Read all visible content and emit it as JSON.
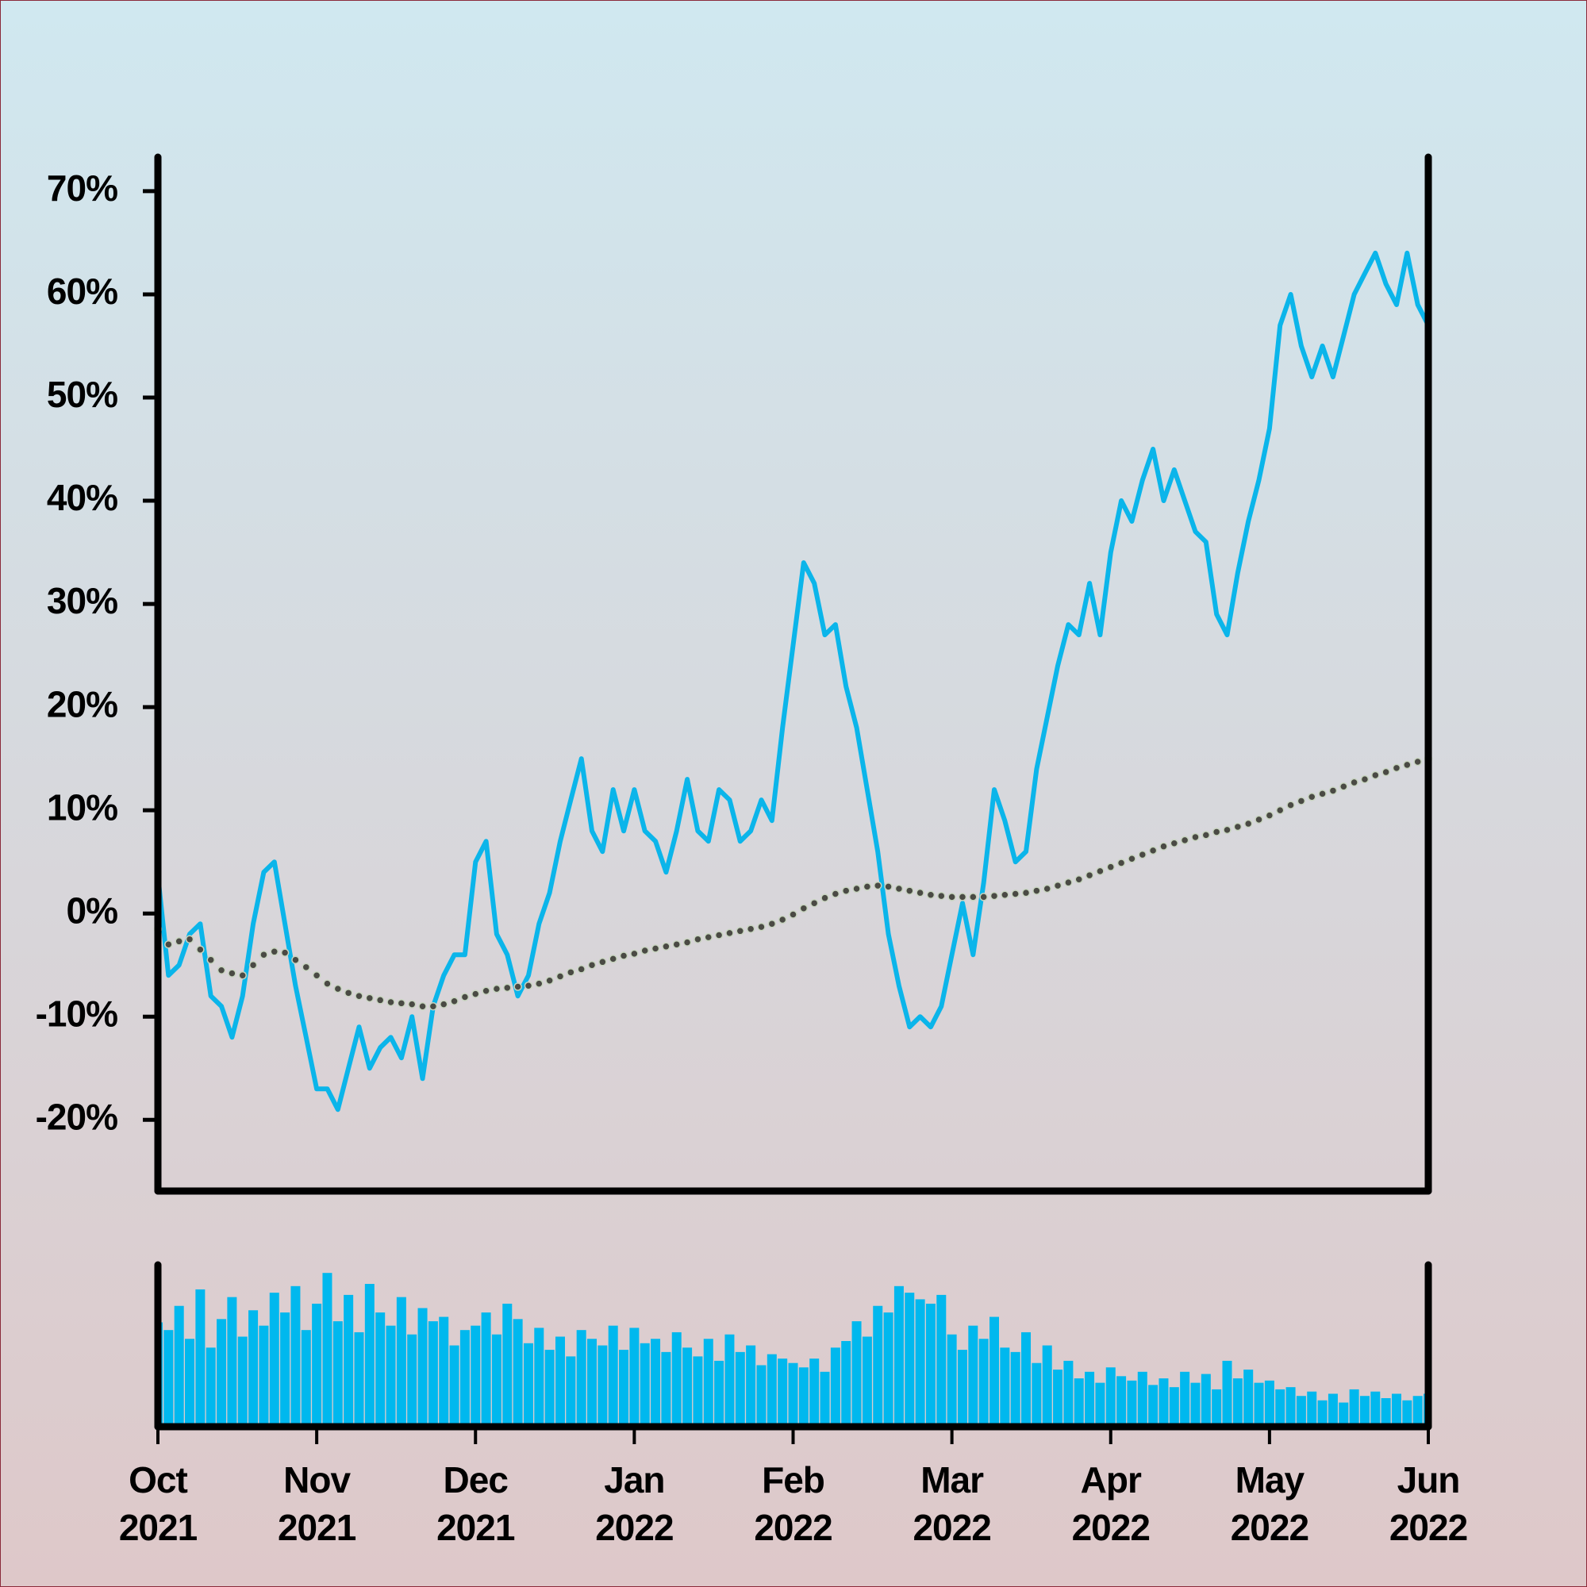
{
  "chart_data": [
    {
      "type": "line",
      "categories": [
        "Oct 2021",
        null,
        null,
        null,
        null,
        null,
        null,
        null,
        null,
        null,
        null,
        null,
        null,
        null,
        null,
        "Nov 2021",
        null,
        null,
        null,
        null,
        null,
        null,
        null,
        null,
        null,
        null,
        null,
        null,
        null,
        null,
        "Dec 2021",
        null,
        null,
        null,
        null,
        null,
        null,
        null,
        null,
        null,
        null,
        null,
        null,
        null,
        null,
        "Jan 2022",
        null,
        null,
        null,
        null,
        null,
        null,
        null,
        null,
        null,
        null,
        null,
        null,
        null,
        null,
        "Feb 2022",
        null,
        null,
        null,
        null,
        null,
        null,
        null,
        null,
        null,
        null,
        null,
        null,
        null,
        null,
        "Mar 2022",
        null,
        null,
        null,
        null,
        null,
        null,
        null,
        null,
        null,
        null,
        null,
        null,
        null,
        null,
        "Apr 2022",
        null,
        null,
        null,
        null,
        null,
        null,
        null,
        null,
        null,
        null,
        null,
        null,
        null,
        null,
        "May 2022",
        null,
        null,
        null,
        null,
        null,
        null,
        null,
        null,
        null,
        null,
        null,
        null,
        null,
        null,
        "Jun 2022"
      ],
      "series": [
        {
          "color": "#0bb5ea",
          "style": "line",
          "values": [
            3.7,
            -6,
            -5,
            -2,
            -1,
            -8,
            -9,
            -12,
            -8,
            -1,
            4,
            5,
            -1,
            -7,
            -12,
            -17,
            -17,
            -19,
            -15,
            -11,
            -15,
            -13,
            -12,
            -14,
            -10,
            -16,
            -9,
            -6,
            -4,
            -4,
            5,
            7,
            -2,
            -4,
            -8,
            -6,
            -1,
            2,
            7,
            11,
            15,
            8,
            6,
            12,
            8,
            12,
            8,
            7,
            4,
            8,
            13,
            8,
            7,
            12,
            11,
            7,
            8,
            11,
            9,
            18,
            26,
            34,
            32,
            27,
            28,
            22,
            18,
            12,
            6,
            -2,
            -7,
            -11,
            -10,
            -11,
            -9,
            -4,
            1,
            -4,
            3,
            12,
            9,
            5,
            6,
            14,
            19,
            24,
            28,
            27,
            32,
            27,
            35,
            40,
            38,
            42,
            45,
            40,
            43,
            40,
            37,
            36,
            29,
            27,
            33,
            38,
            42,
            47,
            57,
            60,
            55,
            52,
            55,
            52,
            56,
            60,
            62,
            64,
            61,
            59,
            64,
            59,
            57
          ]
        },
        {
          "color": "#4a4a44",
          "style": "dots",
          "values": [
            -1.5,
            -3,
            -2.7,
            -2.5,
            -3.5,
            -4.5,
            -5.5,
            -5.8,
            -6,
            -5,
            -4,
            -3.7,
            -3.8,
            -4.5,
            -5.2,
            -6,
            -6.8,
            -7.3,
            -7.7,
            -8,
            -8.2,
            -8.4,
            -8.6,
            -8.7,
            -8.8,
            -9,
            -9,
            -8.8,
            -8.5,
            -8.1,
            -7.8,
            -7.5,
            -7.3,
            -7.2,
            -7.1,
            -7,
            -6.8,
            -6.5,
            -6.1,
            -5.7,
            -5.4,
            -5,
            -4.7,
            -4.4,
            -4.1,
            -3.9,
            -3.6,
            -3.4,
            -3.2,
            -3,
            -2.8,
            -2.5,
            -2.3,
            -2.1,
            -1.9,
            -1.7,
            -1.5,
            -1.3,
            -1,
            -0.6,
            -0.1,
            0.5,
            1,
            1.5,
            1.9,
            2.2,
            2.4,
            2.6,
            2.7,
            2.6,
            2.4,
            2.2,
            2,
            1.8,
            1.7,
            1.6,
            1.6,
            1.6,
            1.6,
            1.7,
            1.8,
            1.9,
            2,
            2.2,
            2.4,
            2.7,
            3,
            3.3,
            3.7,
            4.1,
            4.5,
            4.9,
            5.3,
            5.7,
            6.1,
            6.5,
            6.8,
            7.1,
            7.4,
            7.6,
            7.9,
            8.1,
            8.4,
            8.7,
            9.1,
            9.5,
            10,
            10.5,
            10.9,
            11.3,
            11.6,
            11.9,
            12.3,
            12.7,
            13,
            13.4,
            13.7,
            14.1,
            14.4,
            14.7,
            15
          ]
        }
      ],
      "ylim": [
        -26.9,
        73.3
      ],
      "yticks": [
        {
          "value": -20,
          "label": "-20%"
        },
        {
          "value": -10,
          "label": "-10%"
        },
        {
          "value": 0,
          "label": "0%"
        },
        {
          "value": 10,
          "label": "10%"
        },
        {
          "value": 20,
          "label": "20%"
        },
        {
          "value": 30,
          "label": "30%"
        },
        {
          "value": 40,
          "label": "40%"
        },
        {
          "value": 50,
          "label": "50%"
        },
        {
          "value": 60,
          "label": "60%"
        },
        {
          "value": 70,
          "label": "70%"
        }
      ],
      "grid": false
    },
    {
      "type": "bar",
      "color": "#00b8ee",
      "values": [
        95,
        88,
        110,
        80,
        125,
        72,
        98,
        118,
        82,
        106,
        92,
        122,
        104,
        128,
        88,
        112,
        140,
        96,
        120,
        86,
        130,
        104,
        92,
        118,
        84,
        108,
        96,
        100,
        74,
        88,
        92,
        104,
        84,
        112,
        98,
        76,
        90,
        70,
        82,
        64,
        88,
        80,
        74,
        92,
        70,
        90,
        76,
        80,
        68,
        86,
        72,
        64,
        80,
        60,
        84,
        68,
        74,
        56,
        66,
        62,
        58,
        54,
        62,
        50,
        72,
        78,
        96,
        82,
        110,
        104,
        128,
        122,
        116,
        112,
        120,
        84,
        70,
        92,
        80,
        100,
        72,
        68,
        86,
        58,
        74,
        52,
        60,
        44,
        50,
        40,
        54,
        46,
        42,
        50,
        38,
        44,
        36,
        50,
        40,
        48,
        34,
        60,
        44,
        52,
        40,
        42,
        34,
        36,
        28,
        32,
        24,
        30,
        22,
        34,
        28,
        32,
        26,
        30,
        24,
        28,
        30
      ]
    }
  ]
}
